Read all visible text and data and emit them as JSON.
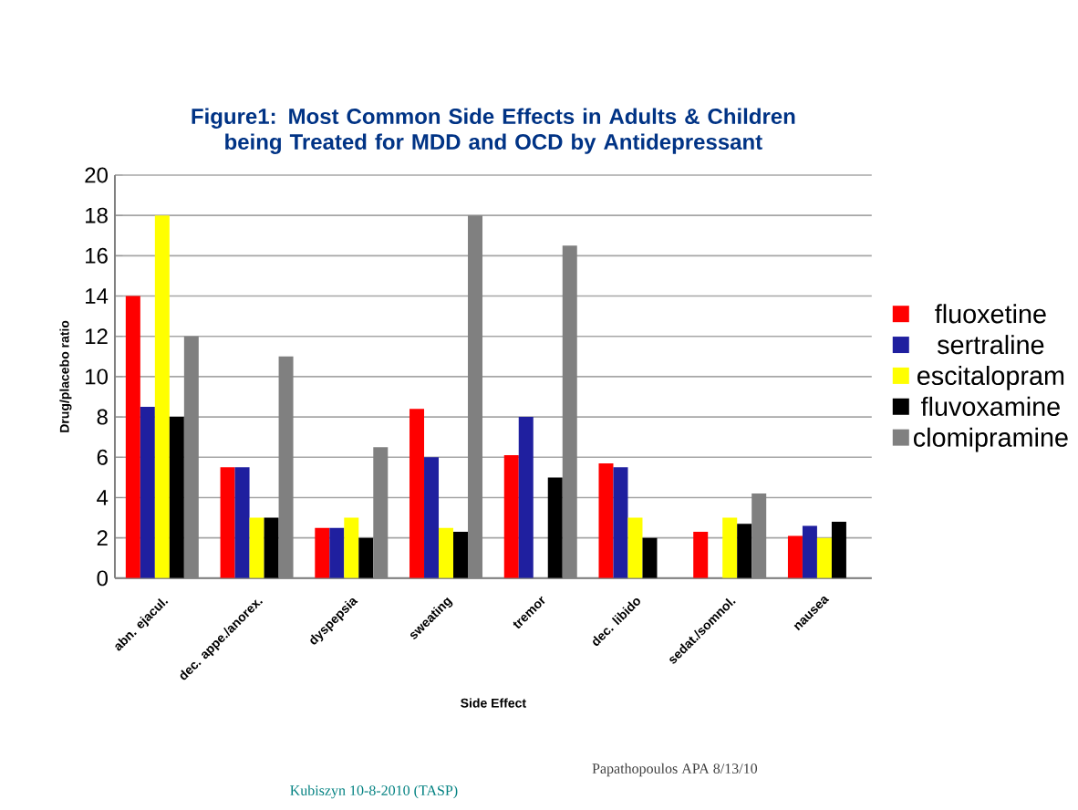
{
  "chart_data": {
    "type": "bar",
    "title": "Figure1: Most Common Side Effects in Adults & Children being Treated for MDD and OCD by Antidepressant",
    "xlabel": "Side Effect",
    "ylabel": "Drug/placebo ratio",
    "categories": [
      "abn. ejacul.",
      "dec. appe./anorex.",
      "dyspepsia",
      "sweating",
      "tremor",
      "dec. libido",
      "sedat./somnol.",
      "nausea"
    ],
    "series": [
      {
        "name": "fluoxetine",
        "color": "#ff0000",
        "values": [
          14,
          5.5,
          2.5,
          8.4,
          6.1,
          5.7,
          2.3,
          2.1
        ]
      },
      {
        "name": "sertraline",
        "color": "#1f1f9f",
        "values": [
          8.5,
          5.5,
          2.5,
          6,
          8,
          5.5,
          null,
          2.6
        ]
      },
      {
        "name": "escitalopram",
        "color": "#ffff00",
        "values": [
          18,
          3,
          3,
          2.5,
          null,
          3,
          3,
          2
        ]
      },
      {
        "name": "fluvoxamine",
        "color": "#000000",
        "values": [
          8,
          3,
          2,
          2.3,
          5,
          2,
          2.7,
          2.8
        ]
      },
      {
        "name": "clomipramine",
        "color": "#808080",
        "values": [
          12,
          11,
          6.5,
          18,
          16.5,
          null,
          4.2,
          null
        ]
      }
    ],
    "ylim": [
      0,
      20
    ],
    "yticks": [
      0,
      2,
      4,
      6,
      8,
      10,
      12,
      14,
      16,
      18,
      20
    ],
    "grid": "y",
    "legend": "right",
    "annotations": [
      "Kubiszyn 10-8-2010 (TASP)",
      "Papathopoulos APA 8/13/10"
    ]
  }
}
